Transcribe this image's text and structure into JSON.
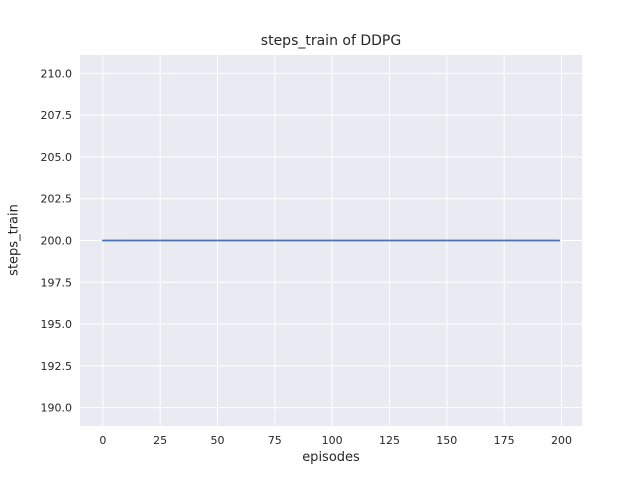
{
  "chart_data": {
    "type": "line",
    "title": "steps_train of DDPG",
    "xlabel": "episodes",
    "ylabel": "steps_train",
    "x_ticks": [
      0,
      25,
      50,
      75,
      100,
      125,
      150,
      175,
      200
    ],
    "x_tick_labels": [
      "0",
      "25",
      "50",
      "75",
      "100",
      "125",
      "150",
      "175",
      "200"
    ],
    "y_ticks": [
      190.0,
      192.5,
      195.0,
      197.5,
      200.0,
      202.5,
      205.0,
      207.5,
      210.0
    ],
    "y_tick_labels": [
      "190.0",
      "192.5",
      "195.0",
      "197.5",
      "200.0",
      "202.5",
      "205.0",
      "207.5",
      "210.0"
    ],
    "xlim": [
      -9.95,
      208.95
    ],
    "ylim": [
      188.9,
      211.1
    ],
    "grid": true,
    "legend": "none",
    "plot_background": "#eaeaf2",
    "grid_color": "#ffffff",
    "text_color": "#262626",
    "series": [
      {
        "name": "steps_train",
        "color": "#4c72b0",
        "x": [
          0,
          199
        ],
        "values": [
          200,
          200
        ]
      }
    ]
  }
}
